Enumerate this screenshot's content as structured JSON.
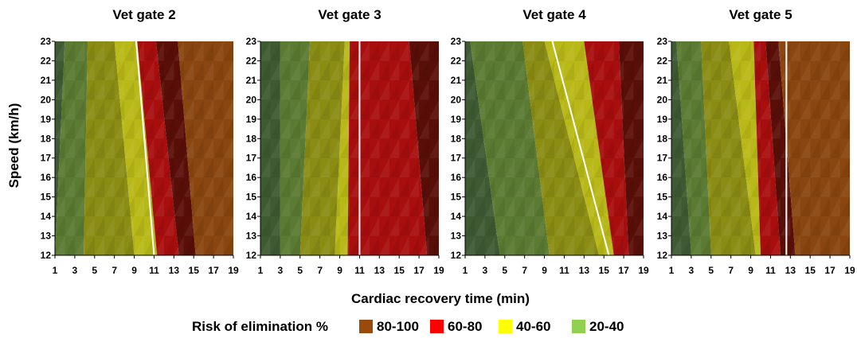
{
  "chart_data": {
    "type": "heatmap",
    "xlabel": "Cardiac recovery time (min)",
    "ylabel": "Speed (km/h)",
    "x_ticks": [
      1,
      3,
      5,
      7,
      9,
      11,
      13,
      15,
      17,
      19
    ],
    "y_ticks": [
      12,
      13,
      14,
      15,
      16,
      17,
      18,
      19,
      20,
      21,
      22,
      23
    ],
    "xlim": [
      1,
      19
    ],
    "ylim": [
      12,
      23
    ],
    "legend": {
      "title": "Risk of elimination %",
      "placement": "bottom",
      "entries": [
        {
          "label": "80-100",
          "color": "#9a4a0c"
        },
        {
          "label": "60-80",
          "color": "#ff0000"
        },
        {
          "label": "40-60",
          "color": "#ffff00"
        },
        {
          "label": "20-40",
          "color": "#92d050"
        }
      ]
    },
    "band_colors": [
      "#3d5a32",
      "#5b7a32",
      "#8a8c14",
      "#b8b818",
      "#a80e0e",
      "#5a0e08",
      "#8a4610",
      "#c03a08"
    ],
    "panels": [
      {
        "title": "Vet gate 2",
        "boundaries": [
          [
            2,
            1
          ],
          [
            4.3,
            3.9
          ],
          [
            7,
            9
          ],
          [
            9.3,
            11.3
          ],
          [
            11.2,
            13.5
          ],
          [
            13.4,
            15.2
          ]
        ],
        "threshold_line": [
          [
            9.2,
            23
          ],
          [
            11,
            12
          ]
        ]
      },
      {
        "title": "Vet gate 3",
        "boundaries": [
          [
            3,
            3
          ],
          [
            6,
            5
          ],
          [
            9.5,
            8.5
          ],
          [
            10,
            9.8
          ],
          [
            16,
            17.8
          ]
        ],
        "threshold_line": [
          [
            11,
            23
          ],
          [
            11,
            12
          ]
        ]
      },
      {
        "title": "Vet gate 4",
        "boundaries": [
          [
            1.5,
            4.5
          ],
          [
            6.8,
            9.5
          ],
          [
            9,
            14.5
          ],
          [
            13,
            16
          ],
          [
            16.5,
            17.5
          ]
        ],
        "threshold_line": [
          [
            9.8,
            23
          ],
          [
            15.5,
            12
          ]
        ]
      },
      {
        "title": "Vet gate 5",
        "boundaries": [
          [
            1.5,
            3
          ],
          [
            4,
            5
          ],
          [
            6.8,
            9.5
          ],
          [
            9.3,
            10
          ],
          [
            10.5,
            12
          ],
          [
            11.8,
            13.5
          ]
        ],
        "threshold_line": [
          [
            12.6,
            23
          ],
          [
            12.6,
            12
          ]
        ]
      }
    ]
  }
}
